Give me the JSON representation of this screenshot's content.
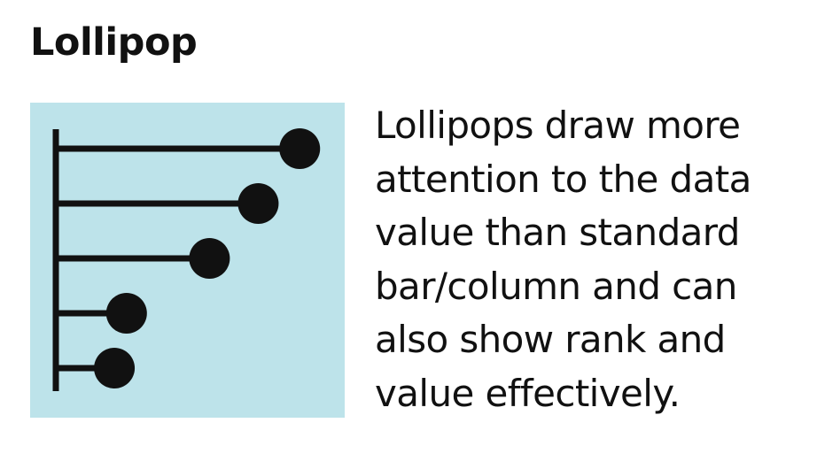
{
  "title": "Lollipop",
  "description": "Lollipops draw more\nattention to the data\nvalue than standard\nbar/column and can\nalso show rank and\nvalue effectively.",
  "colors": {
    "panel_background": "#bde3ea",
    "mark": "#111111",
    "text": "#111111"
  },
  "chart_data": {
    "type": "lollipop",
    "orientation": "horizontal",
    "values": [
      10,
      8.3,
      6.3,
      2.9,
      2.4
    ],
    "xlim": [
      0,
      11.3
    ]
  }
}
